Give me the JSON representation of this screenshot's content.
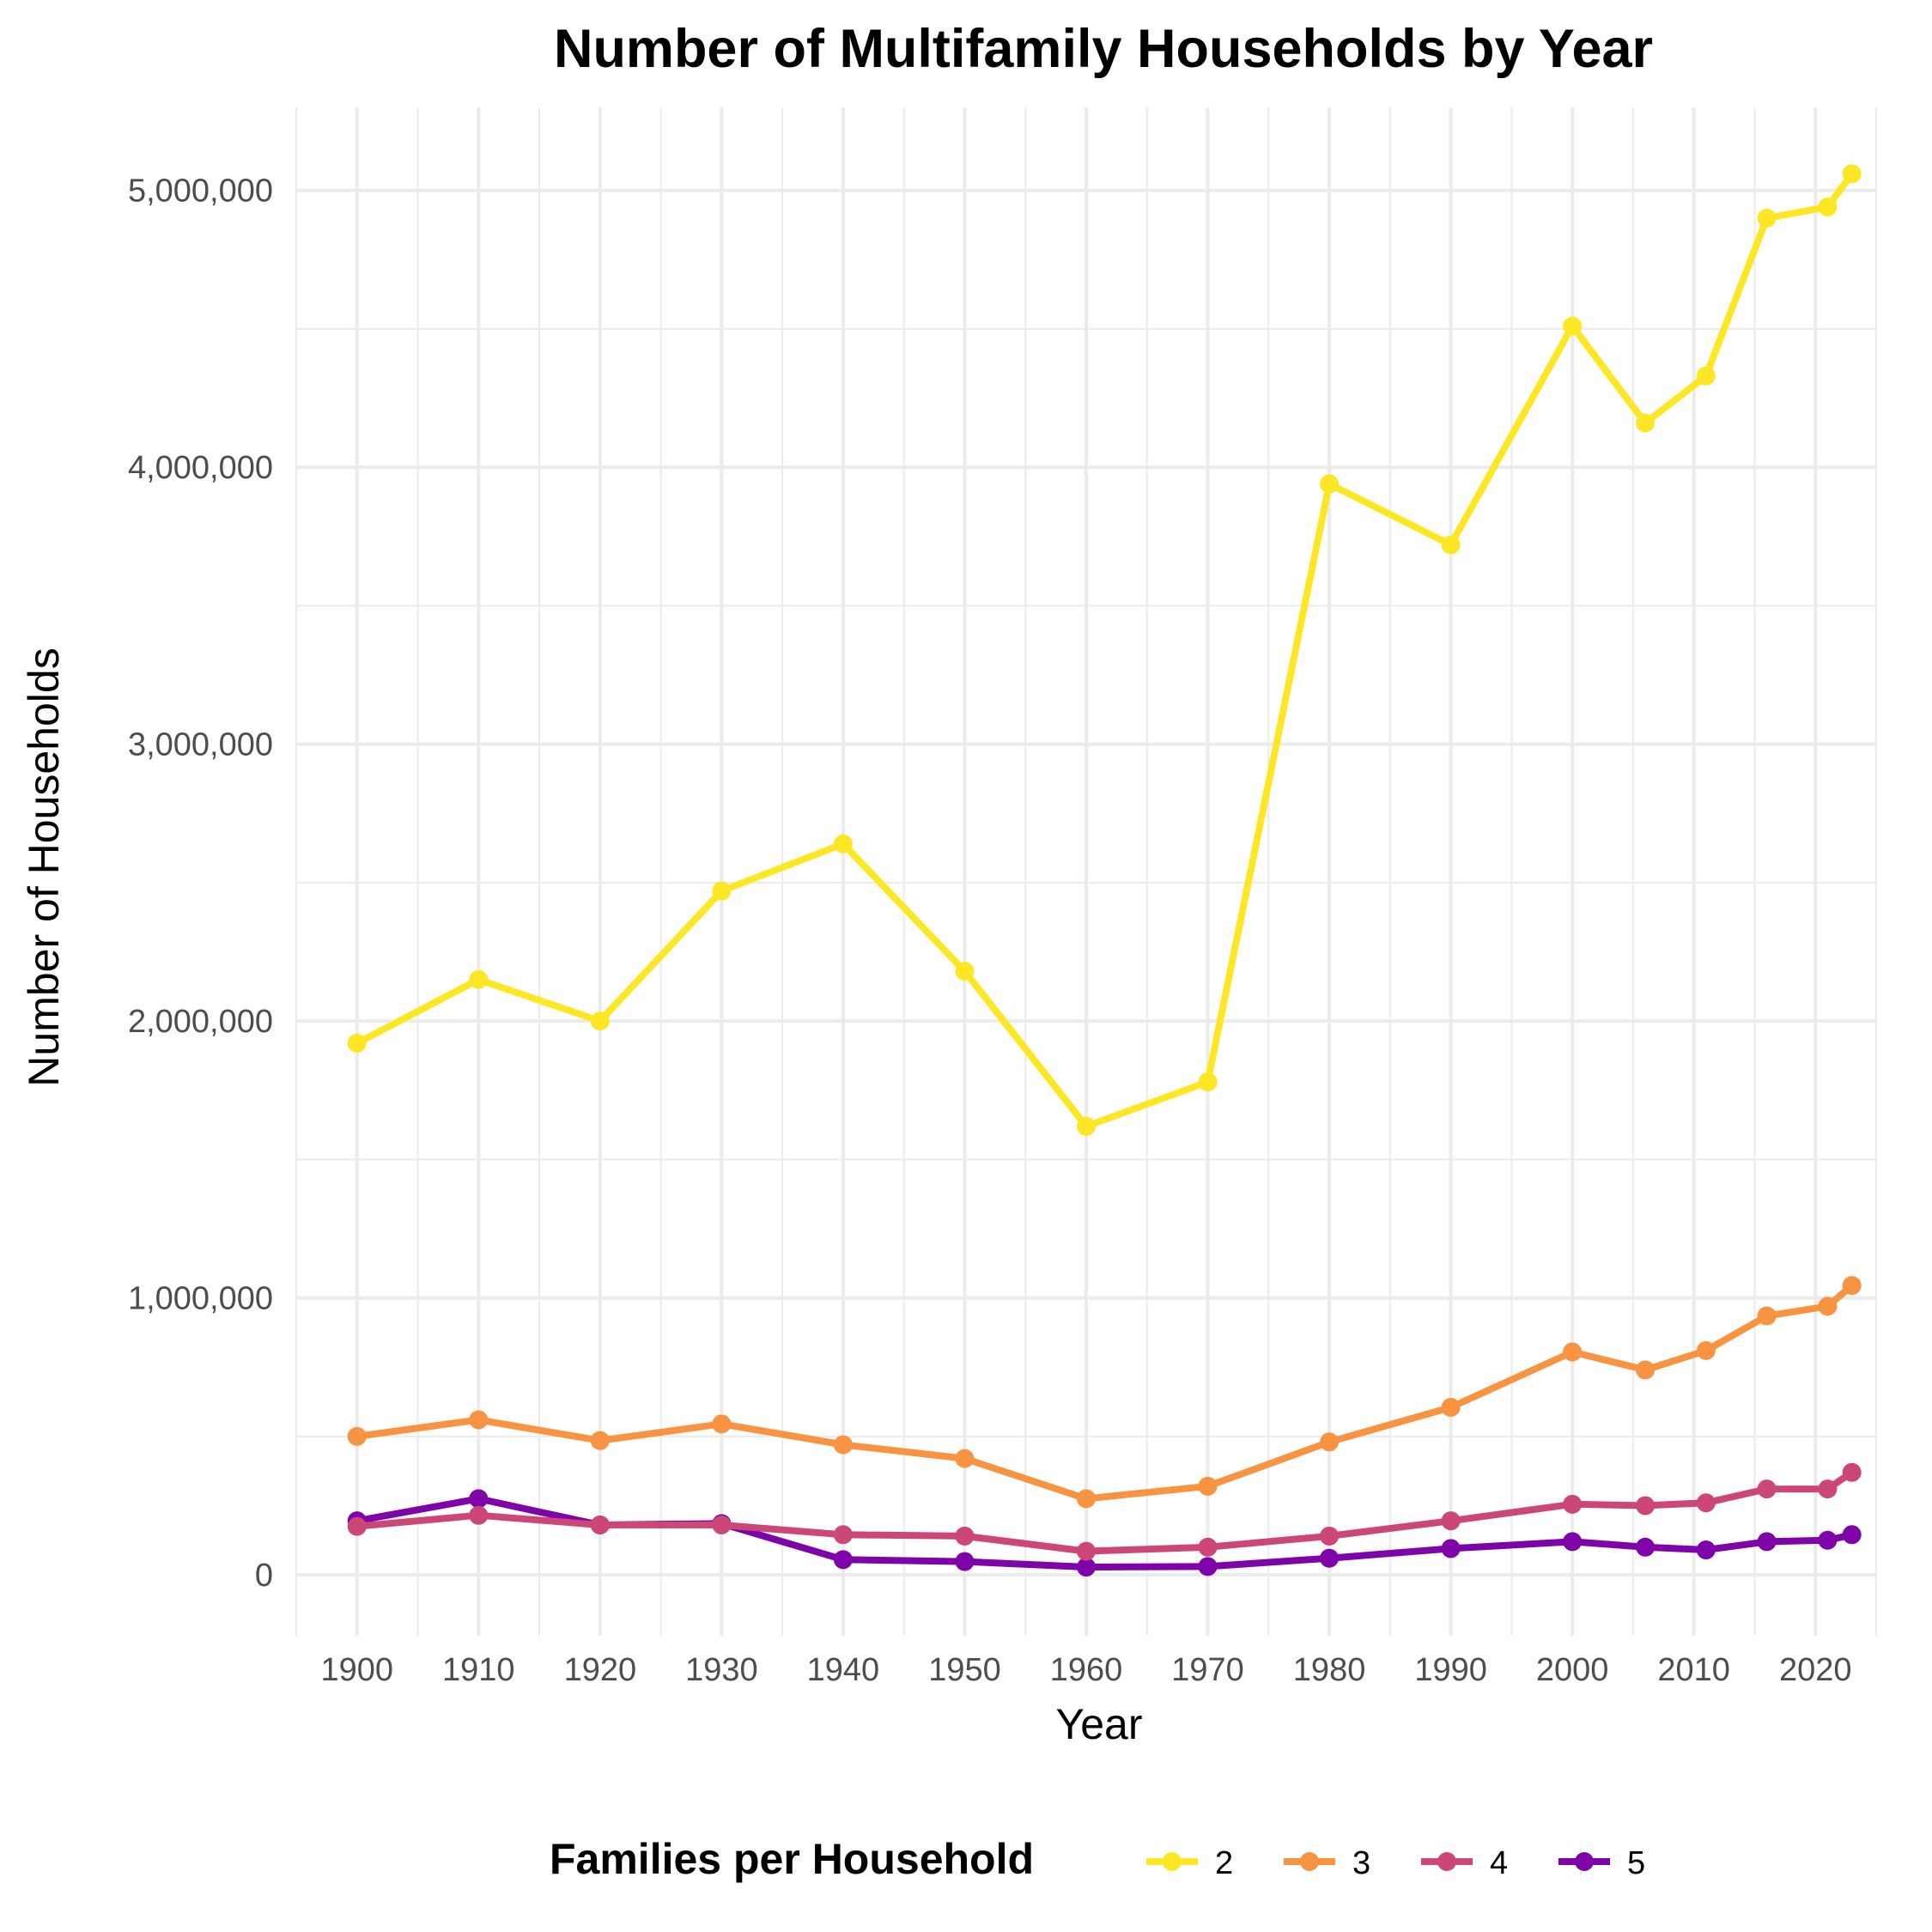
{
  "chart_data": {
    "type": "line",
    "title": "Number of Multifamily Households by Year",
    "xlabel": "Year",
    "ylabel": "Number of Households",
    "xlim": [
      1895,
      2025
    ],
    "ylim": [
      -220000,
      5300000
    ],
    "x_ticks": [
      1900,
      1910,
      1920,
      1930,
      1940,
      1950,
      1960,
      1970,
      1980,
      1990,
      2000,
      2010,
      2020
    ],
    "x_tick_labels": [
      "1900",
      "1910",
      "1920",
      "1930",
      "1940",
      "1950",
      "1960",
      "1970",
      "1980",
      "1990",
      "2000",
      "2010",
      "2020"
    ],
    "y_ticks": [
      0,
      1000000,
      2000000,
      3000000,
      4000000,
      5000000
    ],
    "y_tick_labels": [
      "0",
      "1,000,000",
      "2,000,000",
      "3,000,000",
      "4,000,000",
      "5,000,000"
    ],
    "grid": true,
    "legend": {
      "title": "Families per Household",
      "position": "bottom"
    },
    "x": [
      1900,
      1910,
      1920,
      1930,
      1940,
      1950,
      1960,
      1970,
      1980,
      1990,
      2000,
      2006,
      2011,
      2016,
      2021,
      2023
    ],
    "series": [
      {
        "name": "2",
        "color": "#fde725",
        "values": [
          1920000,
          2150000,
          2000000,
          2470000,
          2640000,
          2180000,
          1620000,
          1780000,
          3940000,
          3720000,
          4510000,
          4160000,
          4330000,
          4900000,
          4940000,
          5060000
        ]
      },
      {
        "name": "3",
        "color": "#f89441",
        "values": [
          500000,
          560000,
          485000,
          545000,
          470000,
          420000,
          275000,
          320000,
          480000,
          605000,
          805000,
          740000,
          810000,
          935000,
          970000,
          1045000
        ]
      },
      {
        "name": "4",
        "color": "#cc4778",
        "values": [
          175000,
          215000,
          180000,
          180000,
          145000,
          140000,
          85000,
          100000,
          140000,
          195000,
          255000,
          250000,
          260000,
          310000,
          310000,
          370000
        ]
      },
      {
        "name": "5",
        "color": "#7e03a8",
        "values": [
          195000,
          275000,
          180000,
          185000,
          55000,
          48000,
          28000,
          30000,
          60000,
          95000,
          120000,
          100000,
          90000,
          120000,
          125000,
          145000
        ]
      }
    ]
  }
}
